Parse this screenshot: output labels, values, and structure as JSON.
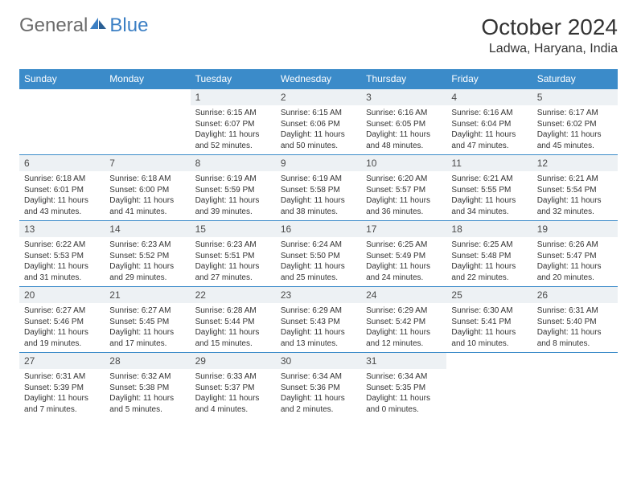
{
  "brand": {
    "name1": "General",
    "name2": "Blue"
  },
  "title": {
    "month": "October 2024",
    "location": "Ladwa, Haryana, India"
  },
  "colors": {
    "header_bg": "#3b8bc9",
    "header_text": "#ffffff",
    "daynum_bg": "#edf1f4",
    "text": "#333333",
    "logo_gray": "#6b6b6b",
    "logo_blue": "#3b7fc4",
    "rule": "#3b8bc9"
  },
  "daynames": [
    "Sunday",
    "Monday",
    "Tuesday",
    "Wednesday",
    "Thursday",
    "Friday",
    "Saturday"
  ],
  "weeks": [
    [
      null,
      null,
      {
        "n": "1",
        "sr": "Sunrise: 6:15 AM",
        "ss": "Sunset: 6:07 PM",
        "d1": "Daylight: 11 hours",
        "d2": "and 52 minutes."
      },
      {
        "n": "2",
        "sr": "Sunrise: 6:15 AM",
        "ss": "Sunset: 6:06 PM",
        "d1": "Daylight: 11 hours",
        "d2": "and 50 minutes."
      },
      {
        "n": "3",
        "sr": "Sunrise: 6:16 AM",
        "ss": "Sunset: 6:05 PM",
        "d1": "Daylight: 11 hours",
        "d2": "and 48 minutes."
      },
      {
        "n": "4",
        "sr": "Sunrise: 6:16 AM",
        "ss": "Sunset: 6:04 PM",
        "d1": "Daylight: 11 hours",
        "d2": "and 47 minutes."
      },
      {
        "n": "5",
        "sr": "Sunrise: 6:17 AM",
        "ss": "Sunset: 6:02 PM",
        "d1": "Daylight: 11 hours",
        "d2": "and 45 minutes."
      }
    ],
    [
      {
        "n": "6",
        "sr": "Sunrise: 6:18 AM",
        "ss": "Sunset: 6:01 PM",
        "d1": "Daylight: 11 hours",
        "d2": "and 43 minutes."
      },
      {
        "n": "7",
        "sr": "Sunrise: 6:18 AM",
        "ss": "Sunset: 6:00 PM",
        "d1": "Daylight: 11 hours",
        "d2": "and 41 minutes."
      },
      {
        "n": "8",
        "sr": "Sunrise: 6:19 AM",
        "ss": "Sunset: 5:59 PM",
        "d1": "Daylight: 11 hours",
        "d2": "and 39 minutes."
      },
      {
        "n": "9",
        "sr": "Sunrise: 6:19 AM",
        "ss": "Sunset: 5:58 PM",
        "d1": "Daylight: 11 hours",
        "d2": "and 38 minutes."
      },
      {
        "n": "10",
        "sr": "Sunrise: 6:20 AM",
        "ss": "Sunset: 5:57 PM",
        "d1": "Daylight: 11 hours",
        "d2": "and 36 minutes."
      },
      {
        "n": "11",
        "sr": "Sunrise: 6:21 AM",
        "ss": "Sunset: 5:55 PM",
        "d1": "Daylight: 11 hours",
        "d2": "and 34 minutes."
      },
      {
        "n": "12",
        "sr": "Sunrise: 6:21 AM",
        "ss": "Sunset: 5:54 PM",
        "d1": "Daylight: 11 hours",
        "d2": "and 32 minutes."
      }
    ],
    [
      {
        "n": "13",
        "sr": "Sunrise: 6:22 AM",
        "ss": "Sunset: 5:53 PM",
        "d1": "Daylight: 11 hours",
        "d2": "and 31 minutes."
      },
      {
        "n": "14",
        "sr": "Sunrise: 6:23 AM",
        "ss": "Sunset: 5:52 PM",
        "d1": "Daylight: 11 hours",
        "d2": "and 29 minutes."
      },
      {
        "n": "15",
        "sr": "Sunrise: 6:23 AM",
        "ss": "Sunset: 5:51 PM",
        "d1": "Daylight: 11 hours",
        "d2": "and 27 minutes."
      },
      {
        "n": "16",
        "sr": "Sunrise: 6:24 AM",
        "ss": "Sunset: 5:50 PM",
        "d1": "Daylight: 11 hours",
        "d2": "and 25 minutes."
      },
      {
        "n": "17",
        "sr": "Sunrise: 6:25 AM",
        "ss": "Sunset: 5:49 PM",
        "d1": "Daylight: 11 hours",
        "d2": "and 24 minutes."
      },
      {
        "n": "18",
        "sr": "Sunrise: 6:25 AM",
        "ss": "Sunset: 5:48 PM",
        "d1": "Daylight: 11 hours",
        "d2": "and 22 minutes."
      },
      {
        "n": "19",
        "sr": "Sunrise: 6:26 AM",
        "ss": "Sunset: 5:47 PM",
        "d1": "Daylight: 11 hours",
        "d2": "and 20 minutes."
      }
    ],
    [
      {
        "n": "20",
        "sr": "Sunrise: 6:27 AM",
        "ss": "Sunset: 5:46 PM",
        "d1": "Daylight: 11 hours",
        "d2": "and 19 minutes."
      },
      {
        "n": "21",
        "sr": "Sunrise: 6:27 AM",
        "ss": "Sunset: 5:45 PM",
        "d1": "Daylight: 11 hours",
        "d2": "and 17 minutes."
      },
      {
        "n": "22",
        "sr": "Sunrise: 6:28 AM",
        "ss": "Sunset: 5:44 PM",
        "d1": "Daylight: 11 hours",
        "d2": "and 15 minutes."
      },
      {
        "n": "23",
        "sr": "Sunrise: 6:29 AM",
        "ss": "Sunset: 5:43 PM",
        "d1": "Daylight: 11 hours",
        "d2": "and 13 minutes."
      },
      {
        "n": "24",
        "sr": "Sunrise: 6:29 AM",
        "ss": "Sunset: 5:42 PM",
        "d1": "Daylight: 11 hours",
        "d2": "and 12 minutes."
      },
      {
        "n": "25",
        "sr": "Sunrise: 6:30 AM",
        "ss": "Sunset: 5:41 PM",
        "d1": "Daylight: 11 hours",
        "d2": "and 10 minutes."
      },
      {
        "n": "26",
        "sr": "Sunrise: 6:31 AM",
        "ss": "Sunset: 5:40 PM",
        "d1": "Daylight: 11 hours",
        "d2": "and 8 minutes."
      }
    ],
    [
      {
        "n": "27",
        "sr": "Sunrise: 6:31 AM",
        "ss": "Sunset: 5:39 PM",
        "d1": "Daylight: 11 hours",
        "d2": "and 7 minutes."
      },
      {
        "n": "28",
        "sr": "Sunrise: 6:32 AM",
        "ss": "Sunset: 5:38 PM",
        "d1": "Daylight: 11 hours",
        "d2": "and 5 minutes."
      },
      {
        "n": "29",
        "sr": "Sunrise: 6:33 AM",
        "ss": "Sunset: 5:37 PM",
        "d1": "Daylight: 11 hours",
        "d2": "and 4 minutes."
      },
      {
        "n": "30",
        "sr": "Sunrise: 6:34 AM",
        "ss": "Sunset: 5:36 PM",
        "d1": "Daylight: 11 hours",
        "d2": "and 2 minutes."
      },
      {
        "n": "31",
        "sr": "Sunrise: 6:34 AM",
        "ss": "Sunset: 5:35 PM",
        "d1": "Daylight: 11 hours",
        "d2": "and 0 minutes."
      },
      null,
      null
    ]
  ]
}
